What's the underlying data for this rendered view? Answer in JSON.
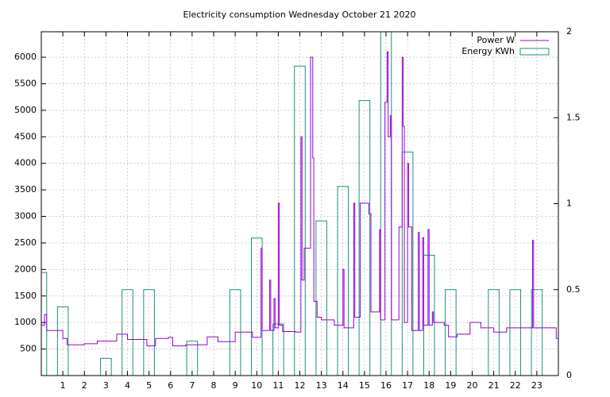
{
  "chart_data": {
    "type": "step-box",
    "title": "Electricity consumption Wednesday October 21 2020",
    "xlim": [
      0,
      24
    ],
    "xticks": [
      1,
      2,
      3,
      4,
      5,
      6,
      7,
      8,
      9,
      10,
      11,
      12,
      13,
      14,
      15,
      16,
      17,
      18,
      19,
      20,
      21,
      22,
      23
    ],
    "ylim": [
      0,
      6480
    ],
    "yticks": [
      500,
      1000,
      1500,
      2000,
      2500,
      3000,
      3500,
      4000,
      4500,
      5000,
      5500,
      6000
    ],
    "y2lim": [
      0,
      2
    ],
    "y2ticks": [
      0,
      0.5,
      1,
      1.5,
      2
    ],
    "grid": true,
    "legend": "top-right",
    "series": [
      {
        "name": "Power W",
        "color": "#9400d3",
        "kind": "steps",
        "x": [
          0,
          0.15,
          0.25,
          0.9,
          1.0,
          1.2,
          2.0,
          2.6,
          3.5,
          4.0,
          4.9,
          5.3,
          5.9,
          6.1,
          6.7,
          7.7,
          8.2,
          9.0,
          9.8,
          10.2,
          10.25,
          10.6,
          10.65,
          10.8,
          10.85,
          11.0,
          11.05,
          11.2,
          11.8,
          12.05,
          12.1,
          12.2,
          12.5,
          12.6,
          12.65,
          12.8,
          13.0,
          13.6,
          14.0,
          14.05,
          14.5,
          14.55,
          14.8,
          15.2,
          15.3,
          15.7,
          15.75,
          15.95,
          16.05,
          16.1,
          16.2,
          16.25,
          16.6,
          16.75,
          16.8,
          16.85,
          17.0,
          17.05,
          17.2,
          17.5,
          17.55,
          17.7,
          17.75,
          17.95,
          18.0,
          18.15,
          18.2,
          18.7,
          18.9,
          19.3,
          19.9,
          20.4,
          21.0,
          21.6,
          22.8,
          22.85,
          23.9
        ],
        "values": [
          950,
          1150,
          850,
          850,
          700,
          580,
          600,
          650,
          780,
          680,
          560,
          700,
          720,
          560,
          580,
          730,
          640,
          820,
          720,
          2400,
          850,
          1800,
          850,
          1450,
          900,
          3250,
          950,
          830,
          820,
          4500,
          1800,
          2400,
          6000,
          4100,
          1400,
          1100,
          1050,
          950,
          2000,
          900,
          3250,
          1100,
          3250,
          3050,
          1200,
          2750,
          1050,
          5150,
          6100,
          4500,
          4900,
          1050,
          2800,
          6000,
          4700,
          1000,
          4000,
          2800,
          850,
          2700,
          850,
          2600,
          950,
          2750,
          950,
          1200,
          1000,
          950,
          730,
          780,
          1000,
          900,
          820,
          900,
          2550,
          900,
          700
        ]
      },
      {
        "name": "Energy KWh",
        "color": "#1a9080",
        "kind": "boxes",
        "axis": "y2",
        "x": [
          0,
          1,
          2,
          3,
          4,
          5,
          6,
          7,
          8,
          9,
          10,
          11,
          12,
          13,
          14,
          15,
          16,
          17,
          18,
          19,
          20,
          21,
          22,
          23
        ],
        "values": [
          0.6,
          0.4,
          0,
          0.1,
          0.5,
          0.5,
          0,
          0.2,
          0,
          0.5,
          0.8,
          0.3,
          1.8,
          0.9,
          1.1,
          1.6,
          2.0,
          1.3,
          0.7,
          0.5,
          0,
          0.5,
          0.5,
          0.5
        ]
      }
    ]
  }
}
